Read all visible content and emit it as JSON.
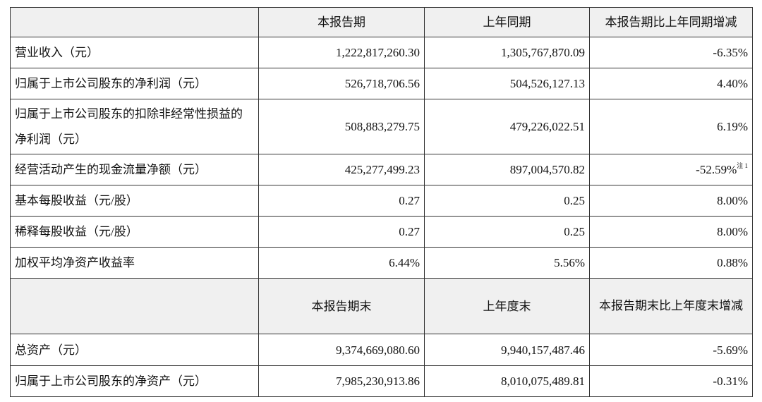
{
  "table": {
    "header": [
      "",
      "本报告期",
      "上年同期",
      "本报告期比上年同期增减"
    ],
    "rows": [
      [
        "营业收入（元）",
        "1,222,817,260.30",
        "1,305,767,870.09",
        "-6.35%"
      ],
      [
        "归属于上市公司股东的净利润（元）",
        "526,718,706.56",
        "504,526,127.13",
        "4.40%"
      ],
      [
        "归属于上市公司股东的扣除非经常性损益的净利润（元）",
        "508,883,279.75",
        "479,226,022.51",
        "6.19%"
      ],
      [
        "经营活动产生的现金流量净额（元）",
        "425,277,499.23",
        "897,004,570.82",
        "-52.59%"
      ],
      [
        "基本每股收益（元/股）",
        "0.27",
        "0.25",
        "8.00%"
      ],
      [
        "稀释每股收益（元/股）",
        "0.27",
        "0.25",
        "8.00%"
      ],
      [
        "加权平均净资产收益率",
        "6.44%",
        "5.56%",
        "0.88%"
      ]
    ],
    "cash_flow_note": "注 1",
    "header2": [
      "",
      "本报告期末",
      "上年度末",
      "本报告期末比上年度末增减"
    ],
    "rows2": [
      [
        "总资产（元）",
        "9,374,669,080.60",
        "9,940,157,487.46",
        "-5.69%"
      ],
      [
        "归属于上市公司股东的净资产（元）",
        "7,985,230,913.86",
        "8,010,075,489.81",
        "-0.31%"
      ]
    ]
  }
}
